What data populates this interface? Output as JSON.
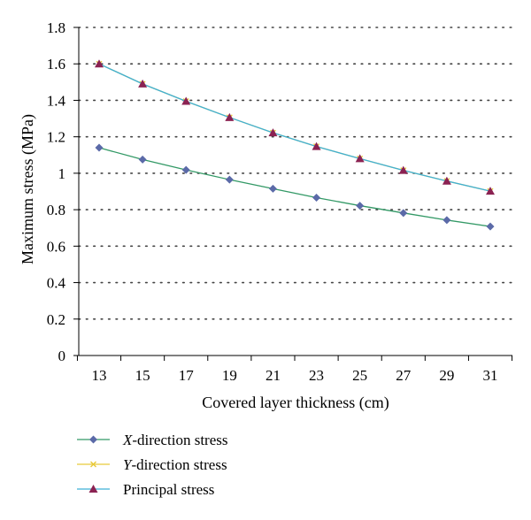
{
  "chart_data": {
    "type": "line",
    "title": "",
    "xlabel": "Covered layer thickness (cm)",
    "ylabel": "Maximum stress (MPa)",
    "x": [
      13,
      15,
      17,
      19,
      21,
      23,
      25,
      27,
      29,
      31
    ],
    "x_tick_labels": [
      "13",
      "15",
      "17",
      "19",
      "21",
      "23",
      "25",
      "27",
      "29",
      "31"
    ],
    "ylim": [
      0,
      1.8
    ],
    "y_ticks": [
      0,
      0.2,
      0.4,
      0.6,
      0.8,
      1,
      1.2,
      1.4,
      1.6,
      1.8
    ],
    "y_tick_labels": [
      "0",
      "0.2",
      "0.4",
      "0.6",
      "0.8",
      "1",
      "1.2",
      "1.4",
      "1.6",
      "1.8"
    ],
    "grid": "horizontal dotted",
    "legend_position": "bottom-left",
    "series": [
      {
        "name": "X-direction stress",
        "name_italic_prefix": "X",
        "name_suffix": "-direction stress",
        "color": "#339966",
        "marker_color": "#5b6aa8",
        "marker": "diamond",
        "values": [
          1.14,
          1.075,
          1.018,
          0.965,
          0.915,
          0.866,
          0.822,
          0.782,
          0.743,
          0.708
        ]
      },
      {
        "name": "Y-direction stress",
        "name_italic_prefix": "Y",
        "name_suffix": "-direction stress",
        "color": "#e8c93a",
        "marker_color": "#e8c93a",
        "marker": "x",
        "values": [
          1.6,
          1.49,
          1.395,
          1.306,
          1.222,
          1.147,
          1.08,
          1.016,
          0.957,
          0.902
        ]
      },
      {
        "name": "Principal stress",
        "name_italic_prefix": "",
        "name_suffix": "Principal stress",
        "color": "#3fb0d6",
        "marker_color": "#8b2252",
        "marker": "triangle",
        "values": [
          1.6,
          1.49,
          1.395,
          1.306,
          1.222,
          1.147,
          1.08,
          1.016,
          0.957,
          0.902
        ]
      }
    ]
  }
}
